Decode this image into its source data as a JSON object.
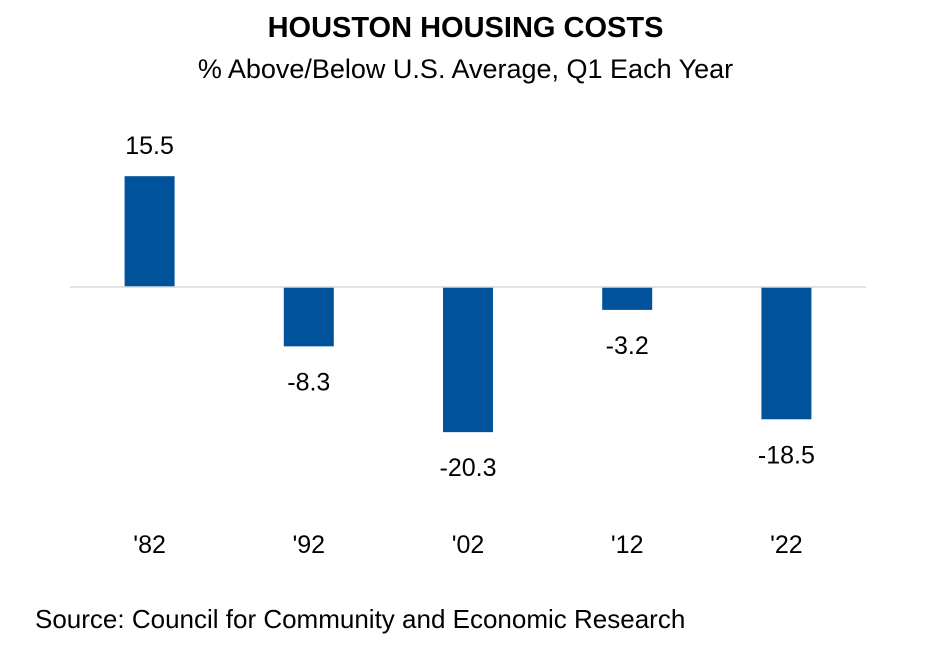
{
  "chart_data": {
    "type": "bar",
    "title": "HOUSTON HOUSING COSTS",
    "subtitle": "% Above/Below U.S. Average, Q1 Each Year",
    "categories": [
      "'82",
      "'92",
      "'02",
      "'12",
      "'22"
    ],
    "values": [
      15.5,
      -8.3,
      -20.3,
      -3.2,
      -18.5
    ],
    "data_labels": [
      "15.5",
      "-8.3",
      "-20.3",
      "-3.2",
      "-18.5"
    ],
    "xlabel": "",
    "ylabel": "",
    "ylim": [
      -25,
      20
    ],
    "grid": false,
    "bar_color": "#00539B",
    "axis_color": "#D9D9D9"
  },
  "source": "Source: Council for Community and Economic Research"
}
